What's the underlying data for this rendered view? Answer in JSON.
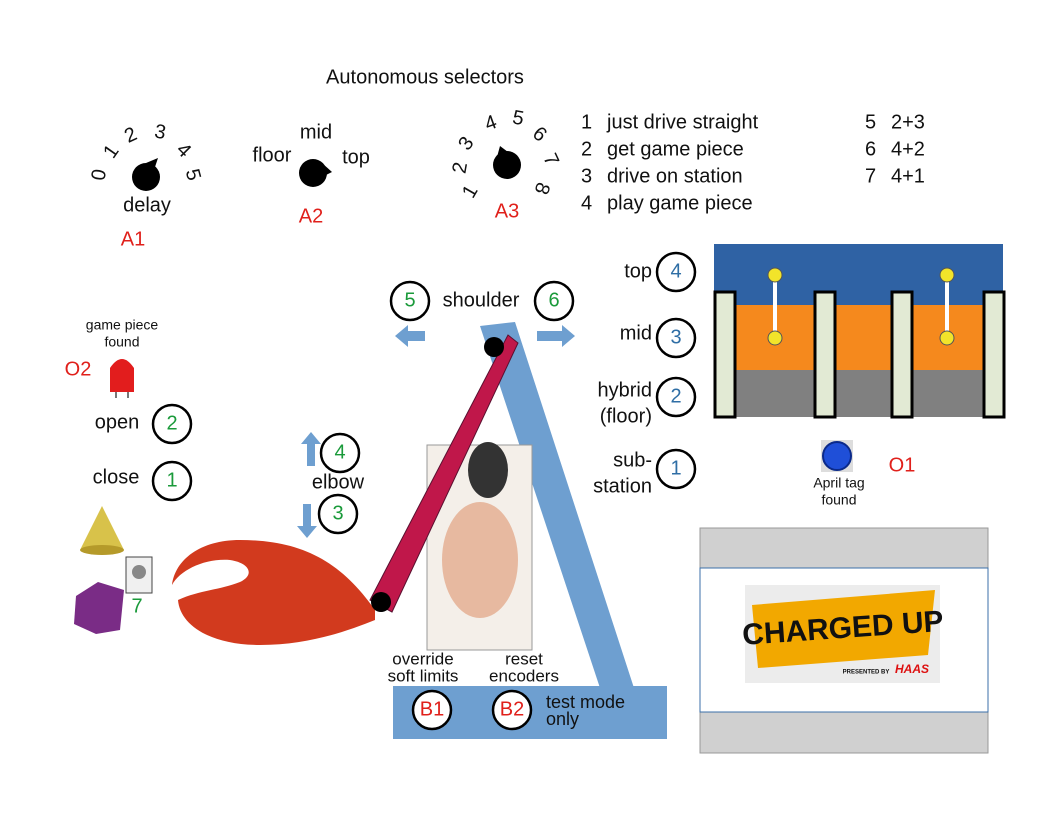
{
  "title": "Autonomous selectors",
  "selectors": [
    {
      "id": "A1",
      "caption": "delay",
      "positions": [
        "0",
        "1",
        "2",
        "3",
        "4",
        "5"
      ]
    },
    {
      "id": "A2",
      "positions": [
        "floor",
        "mid",
        "top"
      ]
    },
    {
      "id": "A3",
      "positions": [
        "1",
        "2",
        "3",
        "4",
        "5",
        "6",
        "7",
        "8"
      ]
    }
  ],
  "auto_modes": [
    {
      "number": "1",
      "label": "just drive straight"
    },
    {
      "number": "2",
      "label": "get game piece"
    },
    {
      "number": "3",
      "label": "drive on station"
    },
    {
      "number": "4",
      "label": "play game piece"
    },
    {
      "number": "5",
      "label": "2+3"
    },
    {
      "number": "6",
      "label": "4+2"
    },
    {
      "number": "7",
      "label": "4+1"
    }
  ],
  "gripper": {
    "indicator": {
      "id": "O2",
      "label": [
        "game piece",
        "found"
      ]
    },
    "open": {
      "label": "open",
      "button": "2"
    },
    "close": {
      "label": "close",
      "button": "1"
    },
    "toggle": "7"
  },
  "elbow": {
    "label": "elbow",
    "up": "4",
    "down": "3"
  },
  "shoulder": {
    "label": "shoulder",
    "left": "5",
    "right": "6"
  },
  "base": {
    "b1": {
      "id": "B1",
      "label": [
        "override",
        "soft limits"
      ]
    },
    "b2": {
      "id": "B2",
      "label": [
        "reset",
        "encoders"
      ]
    },
    "note": [
      "test mode",
      "only"
    ]
  },
  "scoring": [
    {
      "label": [
        "top"
      ],
      "button": "4"
    },
    {
      "label": [
        "mid"
      ],
      "button": "3"
    },
    {
      "label": [
        "hybrid",
        "(floor)"
      ],
      "button": "2"
    },
    {
      "label": [
        "sub-",
        "station"
      ],
      "button": "1"
    }
  ],
  "april_tag": {
    "id": "O1",
    "label": [
      "April tag",
      "found"
    ]
  },
  "logo": {
    "title": "CHARGED UP",
    "presented_by": "PRESENTED BY",
    "sponsor": "HAAS"
  }
}
